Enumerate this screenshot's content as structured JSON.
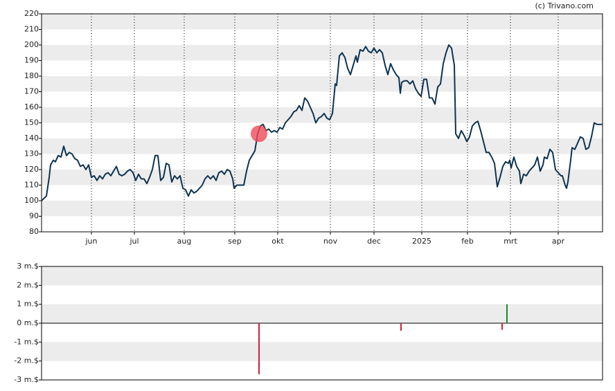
{
  "source": "(c) Trivano.com",
  "chart_data": [
    {
      "type": "line",
      "x": [
        0,
        3.5,
        5.5,
        6.5,
        8.5,
        10,
        12,
        14,
        16,
        18,
        20,
        22,
        24,
        26,
        28,
        30,
        32,
        34,
        36,
        38,
        40,
        42,
        44,
        46,
        48,
        50,
        52,
        54,
        56,
        58,
        60,
        62,
        64,
        66,
        68,
        70,
        72,
        74,
        76,
        78,
        80,
        82,
        84,
        86,
        88,
        90,
        92,
        94,
        96,
        98,
        100,
        102,
        104,
        106,
        108,
        110,
        112,
        114,
        116,
        118,
        120,
        122,
        124,
        126,
        128,
        130,
        132,
        134,
        136,
        138,
        139,
        141,
        144,
        146,
        148,
        150,
        152,
        154,
        156,
        158,
        160,
        162,
        164,
        166,
        168,
        170,
        172,
        174,
        176,
        178,
        180,
        182,
        184,
        186,
        188,
        190,
        192,
        194,
        196,
        198,
        200,
        202,
        204,
        206,
        208,
        210,
        212,
        213,
        215,
        217,
        219,
        221,
        223,
        225,
        227,
        228,
        230,
        232,
        234,
        236,
        238,
        240,
        242,
        244,
        246,
        248,
        250,
        252,
        254,
        256,
        258,
        259,
        260,
        262,
        264,
        266,
        268,
        270,
        272,
        274,
        276,
        278,
        280,
        282,
        284,
        286,
        288,
        290,
        292,
        294,
        296,
        298,
        299,
        301,
        303,
        305,
        307,
        309,
        311,
        313,
        315,
        317,
        319,
        321,
        323,
        325,
        327,
        329,
        331,
        333,
        335,
        337,
        338,
        339,
        341,
        343,
        345,
        346,
        348,
        350,
        352,
        354,
        356,
        358,
        360,
        362,
        363,
        365,
        367,
        369,
        371,
        373,
        375,
        376,
        378,
        379,
        380,
        382,
        383,
        385,
        387,
        389,
        391,
        393,
        395,
        397,
        399,
        401,
        403,
        405
      ],
      "series": [
        {
          "color": "#0d3350",
          "values": [
            100,
            103,
            115,
            123,
            126,
            125,
            129,
            128,
            135,
            129,
            131,
            130,
            127,
            126,
            122,
            123,
            120,
            123,
            115,
            116,
            113,
            116,
            114,
            117,
            118,
            116,
            119,
            122,
            117,
            116,
            117,
            119,
            120,
            118,
            113,
            117,
            114,
            114,
            111,
            115,
            120,
            129,
            129,
            113,
            115,
            124,
            123,
            112,
            116,
            114,
            116,
            108,
            107,
            103,
            107,
            105,
            106,
            108,
            110,
            114,
            116,
            114,
            116,
            113,
            118,
            119,
            117,
            120,
            119,
            114,
            108,
            110,
            110,
            110,
            119,
            126,
            129,
            132,
            143,
            148,
            149,
            145,
            146,
            144,
            145,
            144,
            147,
            146,
            150,
            152,
            154,
            157,
            158,
            161,
            158,
            166,
            164,
            160,
            156,
            150,
            153,
            154,
            156,
            153,
            152,
            156,
            175,
            174,
            193,
            195,
            192,
            185,
            181,
            187,
            193,
            189,
            197,
            196,
            199,
            196,
            195,
            198,
            195,
            197,
            195,
            187,
            181,
            188,
            184,
            181,
            179,
            169,
            176,
            177,
            177,
            175,
            177,
            172,
            169,
            167,
            178,
            178,
            166,
            166,
            162,
            173,
            175,
            188,
            195,
            200,
            198,
            187,
            143,
            140,
            145,
            142,
            138,
            141,
            148,
            150,
            151,
            145,
            138,
            131,
            131,
            128,
            124,
            109,
            115,
            122,
            125,
            124,
            126,
            121,
            128,
            122,
            119,
            111,
            117,
            116,
            119,
            121,
            123,
            128,
            119,
            123,
            128,
            127,
            133,
            131,
            120,
            118,
            116,
            116,
            110,
            108,
            112,
            126,
            134,
            133,
            137,
            141,
            140,
            133,
            134,
            141,
            150,
            149,
            149,
            149
          ]
        }
      ],
      "highlight": {
        "x": 157,
        "y": 143,
        "color": "#f04a5a"
      },
      "xlim": [
        0,
        405
      ],
      "xticks": [
        {
          "value": 36,
          "label": "jun"
        },
        {
          "value": 67,
          "label": "jul"
        },
        {
          "value": 103,
          "label": "aug"
        },
        {
          "value": 139.5,
          "label": "sep"
        },
        {
          "value": 170.5,
          "label": "okt"
        },
        {
          "value": 208.5,
          "label": "nov"
        },
        {
          "value": 240,
          "label": "dec"
        },
        {
          "value": 274.5,
          "label": "2025"
        },
        {
          "value": 307.5,
          "label": "feb"
        },
        {
          "value": 338.5,
          "label": "mrt"
        },
        {
          "value": 373,
          "label": "apr"
        }
      ],
      "ylim": [
        80,
        220
      ],
      "yticks": [
        80,
        90,
        100,
        110,
        120,
        130,
        140,
        150,
        160,
        170,
        180,
        190,
        200,
        210,
        220
      ]
    },
    {
      "type": "bar",
      "x": [
        157,
        259.5,
        332.5,
        336
      ],
      "values": [
        -2.7,
        -0.4,
        -0.35,
        1.0
      ],
      "colors": [
        "#d0203a",
        "#d0203a",
        "#d0203a",
        "#1a8a2a"
      ],
      "xlim": [
        0,
        405
      ],
      "ylim": [
        -3,
        3
      ],
      "yticks": [
        {
          "value": 3,
          "label": "3 m.$"
        },
        {
          "value": 2,
          "label": "2 m.$"
        },
        {
          "value": 1,
          "label": "1 m.$"
        },
        {
          "value": 0,
          "label": "0 m.$"
        },
        {
          "value": -1,
          "label": "-1 m.$"
        },
        {
          "value": -2,
          "label": "-2 m.$"
        },
        {
          "value": -3,
          "label": "-3 m.$"
        }
      ]
    }
  ]
}
